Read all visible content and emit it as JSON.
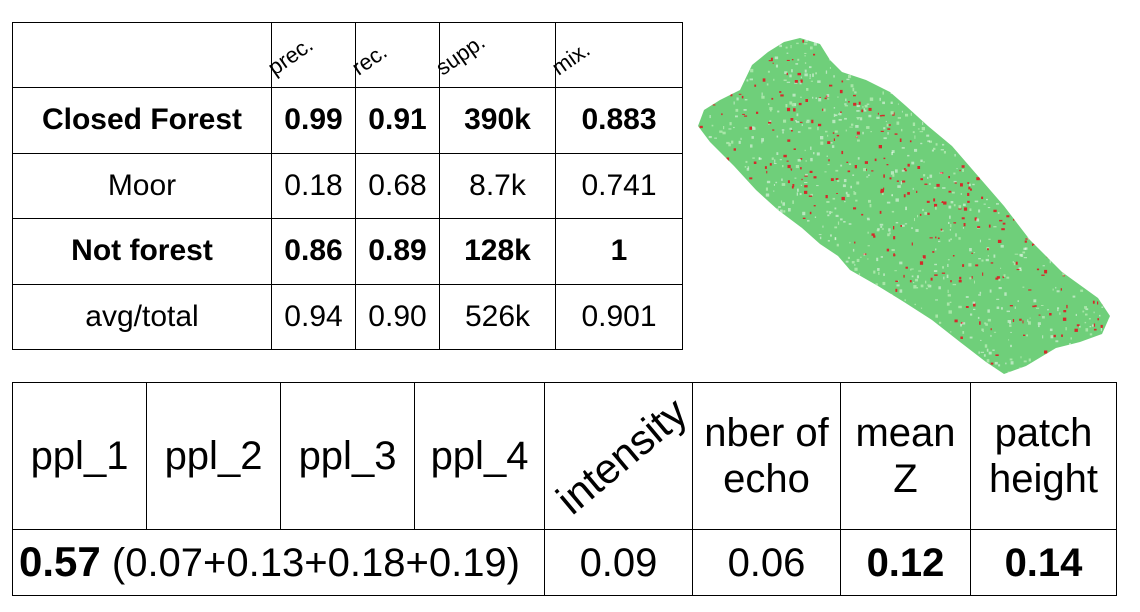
{
  "table1": {
    "headers": [
      "",
      "prec.",
      "rec.",
      "supp.",
      "mix."
    ],
    "rows": [
      {
        "label": "Closed Forest",
        "prec": "0.99",
        "rec": "0.91",
        "supp": "390k",
        "mix": "0.883",
        "bold": true
      },
      {
        "label": "Moor",
        "prec": "0.18",
        "rec": "0.68",
        "supp": "8.7k",
        "mix": "0.741",
        "bold": false
      },
      {
        "label": "Not forest",
        "prec": "0.86",
        "rec": "0.89",
        "supp": "128k",
        "mix": "1",
        "bold": true
      },
      {
        "label": "avg/total",
        "prec": "0.94",
        "rec": "0.90",
        "supp": "526k",
        "mix": "0.901",
        "bold": false
      }
    ]
  },
  "table2": {
    "features": {
      "ppl_1": "ppl_1",
      "ppl_2": "ppl_2",
      "ppl_3": "ppl_3",
      "ppl_4": "ppl_4",
      "intensity": "intensity",
      "nber_of_echo": "nber of echo",
      "mean_z": "mean Z",
      "patch_height": "patch height"
    },
    "values": {
      "ppl_total": "0.57",
      "ppl_breakdown": "(0.07+0.13+0.18+0.19)",
      "intensity": "0.09",
      "nber_of_echo": "0.06",
      "mean_z": "0.12",
      "patch_height": "0.14"
    }
  },
  "map": {
    "colors": {
      "forest": "#6fcf7a",
      "not_forest": "#d42a2a",
      "light": "#a8e6a8"
    }
  }
}
